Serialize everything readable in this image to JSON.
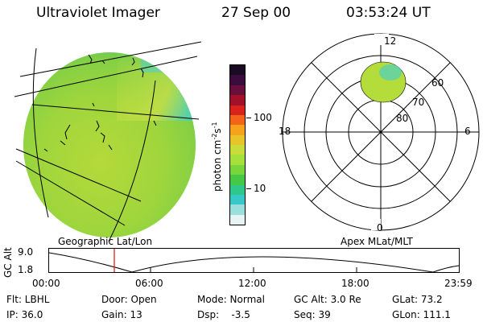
{
  "header": {
    "instrument": "Ultraviolet Imager",
    "date": "27 Sep 00",
    "time": "03:53:24 UT"
  },
  "colorbar": {
    "unit_label": "photon cm",
    "unit_exp1": "-2",
    "unit_mid": "s",
    "unit_exp2": "-1",
    "ticks": [
      "100",
      "10"
    ],
    "colors": [
      "#1a0a24",
      "#3b0d3f",
      "#6a0f3a",
      "#a3102a",
      "#d8241c",
      "#f2641a",
      "#f7a21d",
      "#e7c52a",
      "#c8dc3a",
      "#a6e03a",
      "#78d63c",
      "#44c846",
      "#2ec98a",
      "#39c8c8",
      "#9bdede",
      "#e8f4f4"
    ]
  },
  "left_panel": {
    "caption": "Geographic Lat/Lon"
  },
  "right_panel": {
    "caption": "Apex MLat/MLT",
    "mlt_labels": {
      "top": "12",
      "left": "18",
      "right": "6",
      "bottom": "0"
    },
    "mlat_labels": [
      "60",
      "70",
      "80"
    ]
  },
  "timeline": {
    "ylabel": "GC Alt",
    "y_ticks": [
      "9.0",
      "1.8"
    ],
    "x_ticks": [
      "00:00",
      "06:00",
      "12:00",
      "18:00",
      "23:59"
    ],
    "current_time_marker_color": "#e0201a"
  },
  "status": {
    "flt": "Flt: LBHL",
    "door": "Door: Open",
    "mode": "Mode: Normal",
    "gc_alt": "GC Alt: 3.0 Re",
    "glat": "GLat: 73.2",
    "ip": "IP: 36.0",
    "gain": "Gain: 13",
    "dsp": "Dsp:    -3.5",
    "seq": "Seq: 39",
    "glon": "GLon: 111.1"
  }
}
